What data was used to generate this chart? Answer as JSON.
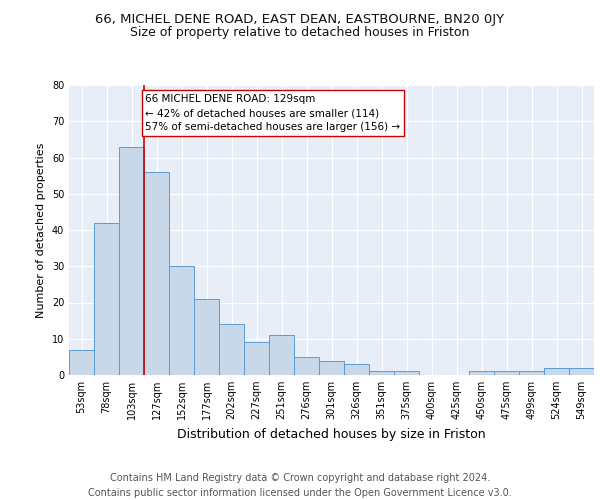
{
  "title1": "66, MICHEL DENE ROAD, EAST DEAN, EASTBOURNE, BN20 0JY",
  "title2": "Size of property relative to detached houses in Friston",
  "xlabel": "Distribution of detached houses by size in Friston",
  "ylabel": "Number of detached properties",
  "categories": [
    "53sqm",
    "78sqm",
    "103sqm",
    "127sqm",
    "152sqm",
    "177sqm",
    "202sqm",
    "227sqm",
    "251sqm",
    "276sqm",
    "301sqm",
    "326sqm",
    "351sqm",
    "375sqm",
    "400sqm",
    "425sqm",
    "450sqm",
    "475sqm",
    "499sqm",
    "524sqm",
    "549sqm"
  ],
  "values": [
    7,
    42,
    63,
    56,
    30,
    21,
    14,
    9,
    11,
    5,
    4,
    3,
    1,
    1,
    0,
    0,
    1,
    1,
    1,
    2,
    2
  ],
  "bar_color": "#c8d8e8",
  "bar_edge_color": "#5b9bd5",
  "vline_color": "#cc0000",
  "annotation_text": "66 MICHEL DENE ROAD: 129sqm\n← 42% of detached houses are smaller (114)\n57% of semi-detached houses are larger (156) →",
  "annotation_box_color": "#ffffff",
  "annotation_box_edge": "#cc0000",
  "ylim": [
    0,
    80
  ],
  "yticks": [
    0,
    10,
    20,
    30,
    40,
    50,
    60,
    70,
    80
  ],
  "background_color": "#e8eef8",
  "footer": "Contains HM Land Registry data © Crown copyright and database right 2024.\nContains public sector information licensed under the Open Government Licence v3.0.",
  "title1_fontsize": 9.5,
  "title2_fontsize": 9,
  "xlabel_fontsize": 9,
  "ylabel_fontsize": 8,
  "footer_fontsize": 7,
  "tick_fontsize": 7,
  "annotation_fontsize": 7.5
}
